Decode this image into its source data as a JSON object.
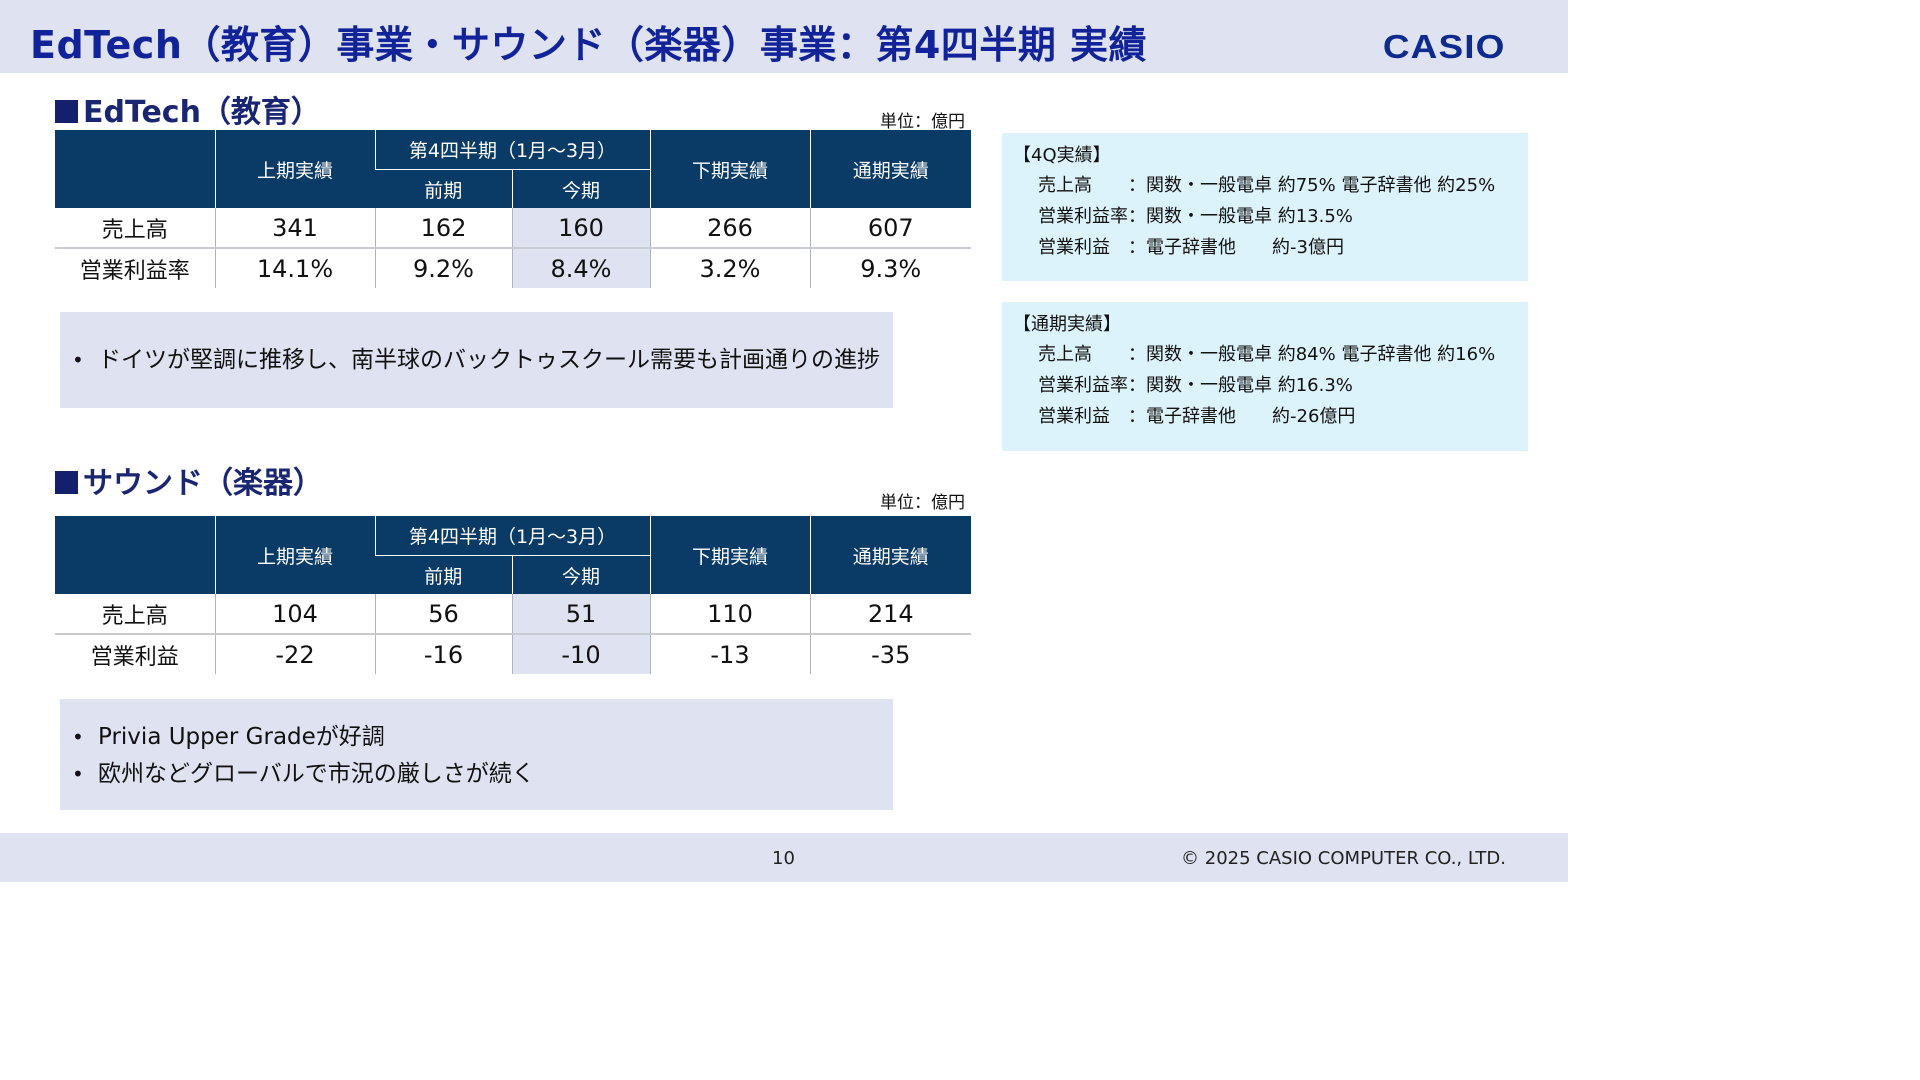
{
  "header": {
    "title": "EdTech（教育）事業・サウンド（楽器）事業：第4四半期 実績",
    "logo_text": "CASIO"
  },
  "edtech": {
    "title": "EdTech（教育）",
    "unit": "単位：億円",
    "columns": {
      "first_half": "上期実績",
      "q4_group": "第4四半期（1月～3月）",
      "prev_year": "前期",
      "this_year": "今期",
      "second_half": "下期実績",
      "full_year": "通期実績"
    },
    "rows": [
      {
        "label": "売上高",
        "values": [
          "341",
          "162",
          "160",
          "266",
          "607"
        ]
      },
      {
        "label": "営業利益率",
        "values": [
          "14.1%",
          "9.2%",
          "8.4%",
          "3.2%",
          "9.3%"
        ]
      }
    ],
    "comments": [
      "ドイツが堅調に推移し、南半球のバックトゥスクール需要も計画通りの進捗"
    ]
  },
  "sound": {
    "title": "サウンド（楽器）",
    "unit": "単位：億円",
    "columns": {
      "first_half": "上期実績",
      "q4_group": "第4四半期（1月～3月）",
      "prev_year": "前期",
      "this_year": "今期",
      "second_half": "下期実績",
      "full_year": "通期実績"
    },
    "rows": [
      {
        "label": "売上高",
        "values": [
          "104",
          "56",
          "51",
          "110",
          "214"
        ]
      },
      {
        "label": "営業利益",
        "values": [
          "-22",
          "-16",
          "-10",
          "-13",
          "-35"
        ]
      }
    ],
    "comments": [
      "Privia Upper Gradeが好調",
      "欧州などグローバルで市況の厳しさが続く"
    ]
  },
  "notes": [
    {
      "heading": "【4Q実績】",
      "rows": [
        {
          "label": "売上高",
          "sep": "：",
          "value": "関数・一般電卓 約75% 電子辞書他 約25%"
        },
        {
          "label": "営業利益率",
          "sep": "：",
          "value": "関数・一般電卓 約13.5%"
        },
        {
          "label": "営業利益",
          "sep": "：",
          "value": "電子辞書他　　約-3億円"
        }
      ]
    },
    {
      "heading": "【通期実績】",
      "rows": [
        {
          "label": "売上高",
          "sep": "：",
          "value": "関数・一般電卓 約84% 電子辞書他 約16%"
        },
        {
          "label": "営業利益率",
          "sep": "：",
          "value": "関数・一般電卓 約16.3%"
        },
        {
          "label": "営業利益",
          "sep": "：",
          "value": "電子辞書他　　約-26億円"
        }
      ]
    }
  ],
  "footer": {
    "page_number": "10",
    "copyright": "© 2025 CASIO COMPUTER CO., LTD."
  }
}
